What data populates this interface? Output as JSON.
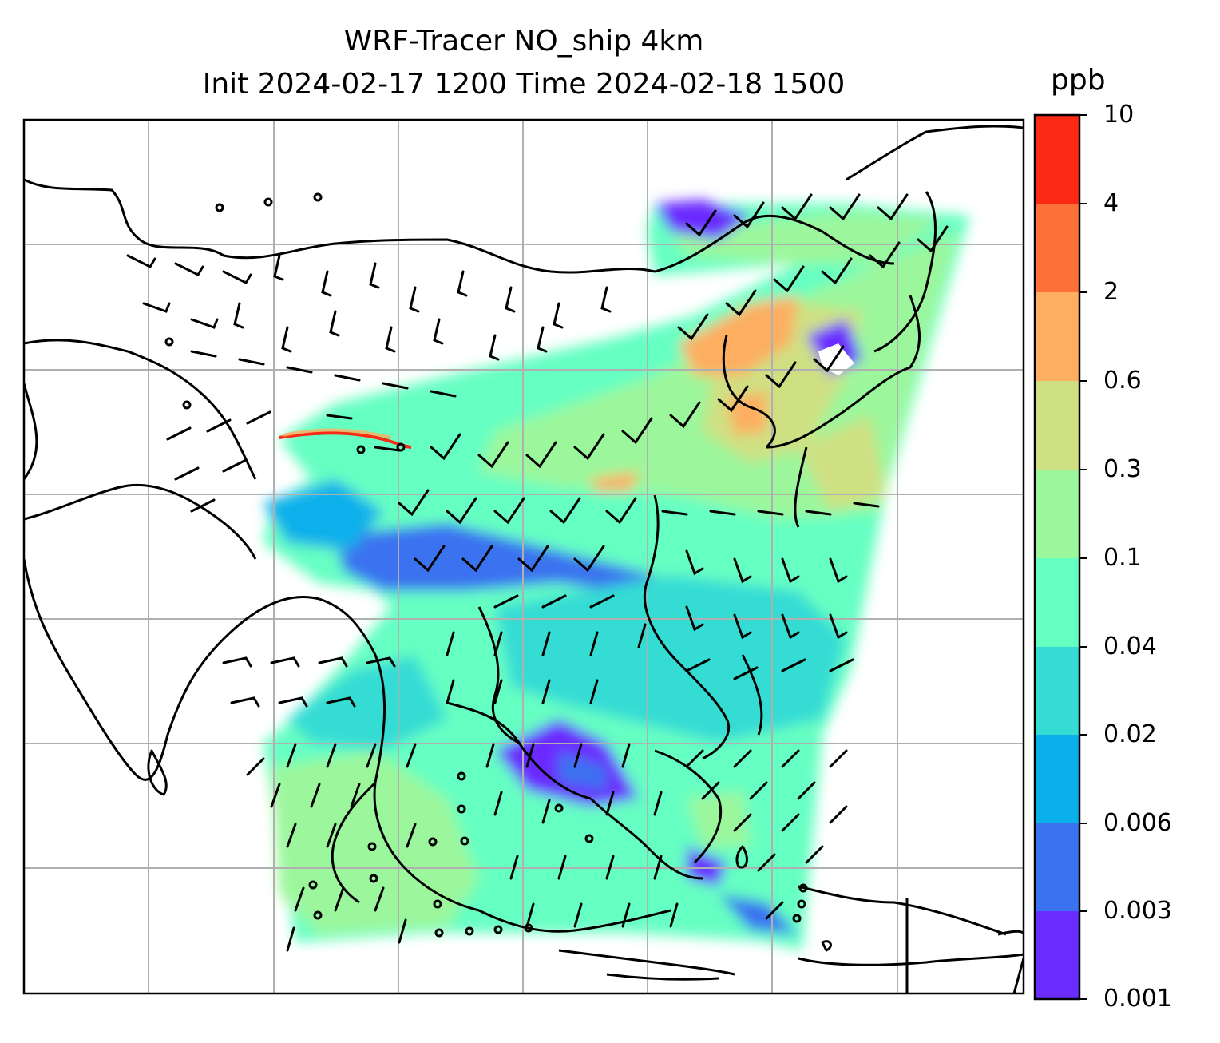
{
  "title": {
    "line1": "WRF-Tracer NO_ship 4km",
    "line2": "Init 2024-02-17 1200 Time 2024-02-18 1500"
  },
  "colorbar": {
    "unit": "ppb",
    "levels": [
      "0.001",
      "0.003",
      "0.006",
      "0.02",
      "0.04",
      "0.1",
      "0.3",
      "0.6",
      "2",
      "4",
      "10"
    ],
    "colors": [
      "#6a2cff",
      "#3a72f0",
      "#0ab0ea",
      "#34dcd4",
      "#66ffc2",
      "#9cf79c",
      "#cfe083",
      "#fdae61",
      "#fd7038",
      "#fc2a14"
    ]
  },
  "map": {
    "field": "NO_ship tracer concentration",
    "overlays": [
      "coastlines",
      "lat-lon gridlines",
      "wind barbs"
    ],
    "gridlines": "on"
  }
}
